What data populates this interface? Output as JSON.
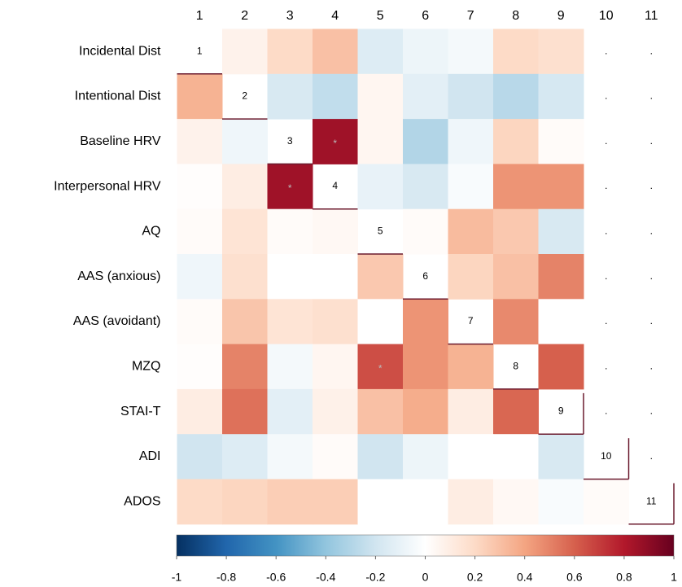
{
  "chart_data": {
    "type": "heatmap",
    "columns": [
      "1",
      "2",
      "3",
      "4",
      "5",
      "6",
      "7",
      "8",
      "9",
      "10",
      "11"
    ],
    "rows": [
      "Incidental Dist",
      "Intentional Dist",
      "Baseline HRV",
      "Interpersonal HRV",
      "AQ",
      "AAS (anxious)",
      "AAS (avoidant)",
      "MZQ",
      "STAI-T",
      "ADI",
      "ADOS"
    ],
    "values": [
      [
        null,
        0.07,
        0.2,
        0.3,
        -0.15,
        -0.08,
        -0.05,
        0.2,
        0.17,
        null,
        null
      ],
      [
        0.35,
        null,
        -0.17,
        -0.25,
        0.05,
        -0.12,
        -0.2,
        -0.28,
        -0.18,
        null,
        null
      ],
      [
        0.07,
        -0.07,
        null,
        0.85,
        0.05,
        -0.3,
        -0.07,
        0.22,
        0.02,
        null,
        null
      ],
      [
        0.01,
        0.1,
        0.85,
        null,
        -0.1,
        -0.17,
        -0.03,
        0.45,
        0.45,
        null,
        null
      ],
      [
        0.02,
        0.15,
        0.02,
        0.04,
        null,
        0.02,
        0.32,
        0.27,
        -0.17,
        null,
        null
      ],
      [
        -0.07,
        0.17,
        0,
        0,
        0.27,
        null,
        0.22,
        0.3,
        0.5,
        null,
        null
      ],
      [
        0.02,
        0.28,
        0.15,
        0.17,
        0,
        0.45,
        null,
        0.48,
        0,
        null,
        null
      ],
      [
        0.01,
        0.5,
        -0.05,
        0.05,
        0.65,
        0.45,
        0.35,
        null,
        0.6,
        null,
        null
      ],
      [
        0.1,
        0.55,
        -0.12,
        0.08,
        0.3,
        0.37,
        0.1,
        0.58,
        null,
        null,
        null
      ],
      [
        -0.2,
        -0.15,
        -0.05,
        0.02,
        -0.2,
        -0.08,
        0,
        0,
        -0.17,
        null,
        null
      ],
      [
        0.2,
        0.22,
        0.25,
        0.25,
        0,
        0,
        0.1,
        0.04,
        -0.03,
        0.02,
        null
      ]
    ],
    "cell_labels": [
      [
        "1",
        null,
        null,
        null,
        null,
        null,
        null,
        null,
        null,
        ".",
        "."
      ],
      [
        null,
        "2",
        null,
        null,
        null,
        null,
        null,
        null,
        null,
        ".",
        "."
      ],
      [
        null,
        null,
        "3",
        "*",
        null,
        null,
        null,
        null,
        null,
        ".",
        "."
      ],
      [
        null,
        null,
        "*",
        "4",
        null,
        null,
        null,
        null,
        null,
        ".",
        "."
      ],
      [
        null,
        null,
        null,
        null,
        "5",
        null,
        null,
        null,
        null,
        ".",
        "."
      ],
      [
        null,
        null,
        null,
        null,
        null,
        "6",
        null,
        null,
        null,
        ".",
        "."
      ],
      [
        null,
        null,
        null,
        null,
        null,
        null,
        "7",
        null,
        null,
        ".",
        "."
      ],
      [
        null,
        null,
        null,
        null,
        "*",
        null,
        null,
        "8",
        null,
        ".",
        "."
      ],
      [
        null,
        null,
        null,
        null,
        null,
        null,
        null,
        null,
        "9",
        ".",
        "."
      ],
      [
        null,
        null,
        null,
        null,
        null,
        null,
        null,
        null,
        null,
        "10",
        "."
      ],
      [
        null,
        null,
        null,
        null,
        null,
        null,
        null,
        null,
        null,
        null,
        "11"
      ]
    ],
    "clim": [
      -1,
      1
    ],
    "cticks": [
      -1,
      -0.8,
      -0.6,
      -0.4,
      -0.2,
      0,
      0.2,
      0.4,
      0.6,
      0.8,
      1
    ],
    "colorscale": [
      "#053061",
      "#2166ac",
      "#4393c3",
      "#92c5de",
      "#d1e5f0",
      "#ffffff",
      "#fddbc7",
      "#f4a582",
      "#d6604d",
      "#b2182b",
      "#67001f"
    ]
  }
}
